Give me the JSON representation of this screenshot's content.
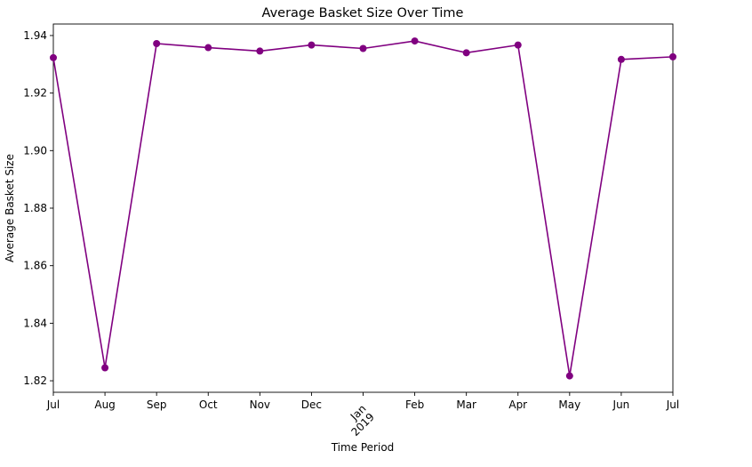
{
  "chart_data": {
    "type": "line",
    "title": "Average Basket Size Over Time",
    "xlabel": "Time Period",
    "ylabel": "Average Basket Size",
    "x": [
      "2018-07",
      "2018-08",
      "2018-09",
      "2018-10",
      "2018-11",
      "2018-12",
      "2019-01",
      "2019-02",
      "2019-03",
      "2019-04",
      "2019-05",
      "2019-06",
      "2019-07"
    ],
    "x_tick_labels": [
      "Jul",
      "Aug",
      "Sep",
      "Oct",
      "Nov",
      "Dec",
      "Jan\n2019",
      "Feb",
      "Mar",
      "Apr",
      "May",
      "Jun",
      "Jul"
    ],
    "series": [
      {
        "values": [
          1.9323,
          1.8245,
          1.9372,
          1.9358,
          1.9346,
          1.9367,
          1.9355,
          1.9381,
          1.934,
          1.9367,
          1.8217,
          1.9317,
          1.9326
        ],
        "color": "#800080",
        "marker": "circle"
      }
    ],
    "ylim": [
      1.816,
      1.944
    ],
    "y_ticks": [
      1.82,
      1.84,
      1.86,
      1.88,
      1.9,
      1.92,
      1.94
    ],
    "y_tick_labels": [
      "1.82",
      "1.84",
      "1.86",
      "1.88",
      "1.90",
      "1.92",
      "1.94"
    ],
    "grid": false,
    "legend": "none"
  }
}
